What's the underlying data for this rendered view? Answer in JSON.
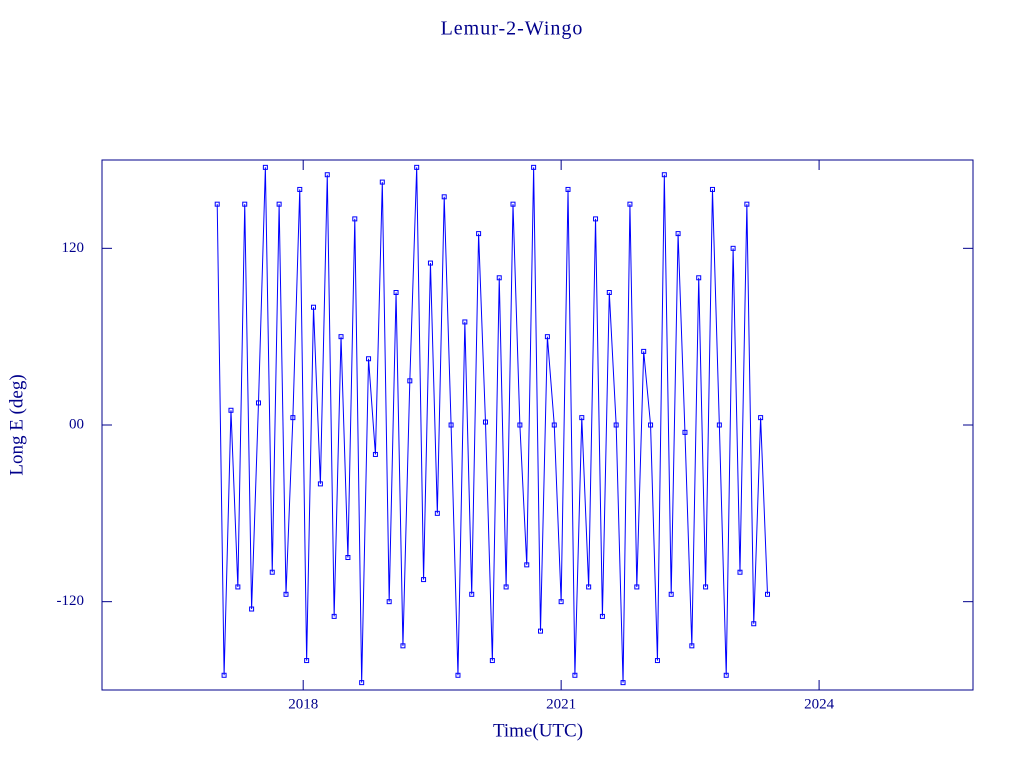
{
  "chart_data": {
    "type": "line",
    "title": "Lemur-2-Wingo",
    "x_label": "Time(UTC)",
    "y_label": "Long E (deg)",
    "xlim": [
      2015.66,
      2025.79
    ],
    "xticks": [
      2018,
      2021,
      2024
    ],
    "ylim": [
      -180,
      180
    ],
    "yticks": [
      120,
      {
        "value": 0,
        "label": "00"
      },
      -120
    ],
    "series": [
      {
        "color": "#0000ff",
        "x": [
          2017.0,
          2017.08,
          2017.16,
          2017.24,
          2017.32,
          2017.4,
          2017.48,
          2017.56,
          2017.64,
          2017.72,
          2017.8,
          2017.88,
          2017.96,
          2018.04,
          2018.12,
          2018.2,
          2018.28,
          2018.36,
          2018.44,
          2018.52,
          2018.6,
          2018.68,
          2018.76,
          2018.84,
          2018.92,
          2019.0,
          2019.08,
          2019.16,
          2019.24,
          2019.32,
          2019.4,
          2019.48,
          2019.56,
          2019.64,
          2019.72,
          2019.8,
          2019.88,
          2019.96,
          2020.04,
          2020.12,
          2020.2,
          2020.28,
          2020.36,
          2020.44,
          2020.52,
          2020.6,
          2020.68,
          2020.76,
          2020.84,
          2020.92,
          2021.0,
          2021.08,
          2021.16,
          2021.24,
          2021.32,
          2021.4,
          2021.48,
          2021.56,
          2021.64,
          2021.72,
          2021.8,
          2021.88,
          2021.96,
          2022.04,
          2022.12,
          2022.2,
          2022.28,
          2022.36,
          2022.44,
          2022.52,
          2022.6,
          2022.68,
          2022.76,
          2022.84,
          2022.92,
          2023.0,
          2023.08,
          2023.16,
          2023.24,
          2023.32,
          2023.4
        ],
        "values": [
          150,
          -170,
          10,
          -110,
          150,
          -125,
          15,
          175,
          -100,
          150,
          -115,
          5,
          160,
          -160,
          80,
          -40,
          170,
          -130,
          60,
          -90,
          140,
          -175,
          45,
          -20,
          165,
          -120,
          90,
          -150,
          30,
          175,
          -105,
          110,
          -60,
          155,
          0,
          -170,
          70,
          -115,
          130,
          2,
          -160,
          100,
          -110,
          150,
          0,
          -95,
          175,
          -140,
          60,
          0,
          -120,
          160,
          -170,
          5,
          -110,
          140,
          -130,
          90,
          0,
          -175,
          150,
          -110,
          50,
          0,
          -160,
          170,
          -115,
          130,
          -5,
          -150,
          100,
          -110,
          160,
          0,
          -170,
          120,
          -100,
          150,
          -135,
          5,
          -115
        ]
      }
    ]
  }
}
